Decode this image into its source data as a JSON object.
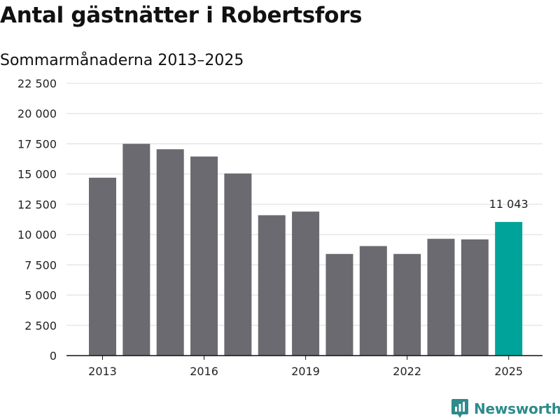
{
  "header": {
    "title": "Antal gästnätter i Robertsfors",
    "subtitle": "Sommarmånaderna 2013–2025"
  },
  "logo": {
    "text": "Newsworthy",
    "icon": "newsworthy-logo-icon",
    "color": "#2e8b8b"
  },
  "colors": {
    "bar": "#6b6a70",
    "highlight": "#00a39a",
    "grid": "#dcdcdc",
    "axis": "#111111"
  },
  "chart_data": {
    "type": "bar",
    "title": "Antal gästnätter i Robertsfors",
    "subtitle": "Sommarmånaderna 2013–2025",
    "xlabel": "",
    "ylabel": "",
    "categories": [
      "2013",
      "2014",
      "2015",
      "2016",
      "2017",
      "2018",
      "2019",
      "2020",
      "2021",
      "2022",
      "2023",
      "2024",
      "2025"
    ],
    "values": [
      14700,
      17500,
      17050,
      16450,
      15050,
      11600,
      11900,
      8400,
      9050,
      8400,
      9650,
      9600,
      11043
    ],
    "highlight_index": 12,
    "annotation": {
      "category": "2025",
      "text": "11 043"
    },
    "x_tick_labels": [
      "2013",
      "2016",
      "2019",
      "2022",
      "2025"
    ],
    "y_ticks": [
      0,
      2500,
      5000,
      7500,
      10000,
      12500,
      15000,
      17500,
      20000,
      22500
    ],
    "y_tick_labels": [
      "0",
      "2 500",
      "5 000",
      "7 500",
      "10 000",
      "12 500",
      "15 000",
      "17 500",
      "20 000",
      "22 500"
    ],
    "ylim": [
      0,
      22500
    ],
    "grid": true,
    "legend": "none"
  }
}
